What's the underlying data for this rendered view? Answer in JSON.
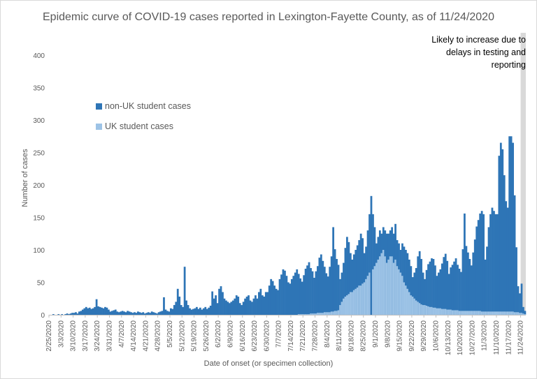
{
  "chart_data": {
    "type": "bar",
    "stacked": true,
    "title": "Epidemic curve of COVID-19 cases reported in Lexington-Fayette County, as of 11/24/2020",
    "xlabel": "Date of onset (or specimen collection)",
    "ylabel": "Number of cases",
    "ylim": [
      0,
      400
    ],
    "yticks": [
      0,
      50,
      100,
      150,
      200,
      250,
      300,
      350,
      400
    ],
    "xticks": [
      "2/25/2020",
      "3/3/2020",
      "3/10/2020",
      "3/17/2020",
      "3/24/2020",
      "3/31/2020",
      "4/7/2020",
      "4/14/2020",
      "4/21/2020",
      "4/28/2020",
      "5/5/2020",
      "5/12/2020",
      "5/19/2020",
      "5/26/2020",
      "6/2/2020",
      "6/9/2020",
      "6/16/2020",
      "6/23/2020",
      "6/30/2020",
      "7/7/2020",
      "7/14/2020",
      "7/21/2020",
      "7/28/2020",
      "8/4/2020",
      "8/11/2020",
      "8/18/2020",
      "8/25/2020",
      "9/1/2020",
      "9/8/2020",
      "9/15/2020",
      "9/22/2020",
      "9/29/2020",
      "10/6/2020",
      "10/13/2020",
      "10/20/2020",
      "10/27/2020",
      "11/3/2020",
      "11/10/2020",
      "11/17/2020",
      "11/24/2020"
    ],
    "start_date": "2/25/2020",
    "legend_position": "upper-left",
    "series": [
      {
        "name": "non-UK student cases",
        "color": "#2e75b6",
        "weekly_values": [
          [
            0,
            0,
            1,
            0,
            0,
            1,
            0
          ],
          [
            1,
            0,
            1,
            2,
            1,
            2,
            3
          ],
          [
            3,
            4,
            2,
            5,
            6,
            8,
            10
          ],
          [
            12,
            10,
            11,
            9,
            10,
            12,
            24
          ],
          [
            13,
            12,
            11,
            10,
            12,
            11,
            8
          ],
          [
            5,
            6,
            7,
            8,
            5,
            4,
            5
          ],
          [
            6,
            5,
            4,
            6,
            5,
            4,
            3
          ],
          [
            4,
            3,
            5,
            4,
            3,
            4,
            2
          ],
          [
            3,
            4,
            3,
            5,
            4,
            3,
            2
          ],
          [
            4,
            5,
            6,
            27,
            8,
            6,
            5
          ],
          [
            10,
            9,
            15,
            20,
            40,
            28,
            15
          ],
          [
            12,
            74,
            22,
            15,
            10,
            8,
            9
          ],
          [
            10,
            12,
            9,
            11,
            8,
            10,
            12
          ],
          [
            9,
            11,
            14,
            36,
            25,
            30,
            18
          ],
          [
            40,
            44,
            35,
            25,
            22,
            20,
            18
          ],
          [
            20,
            22,
            25,
            30,
            28,
            18,
            15
          ],
          [
            20,
            25,
            28,
            30,
            22,
            20,
            25
          ],
          [
            30,
            25,
            35,
            40,
            30,
            28,
            35
          ],
          [
            35,
            45,
            55,
            52,
            45,
            40,
            38
          ],
          [
            55,
            62,
            70,
            68,
            60,
            50,
            48
          ],
          [
            55,
            60,
            65,
            70,
            62,
            55,
            50
          ],
          [
            60,
            70,
            75,
            80,
            70,
            65,
            55
          ],
          [
            65,
            72,
            85,
            90,
            80,
            70,
            60
          ],
          [
            55,
            70,
            85,
            130,
            95,
            80,
            70
          ],
          [
            40,
            45,
            55,
            75,
            90,
            80,
            60
          ],
          [
            50,
            55,
            60,
            65,
            70,
            80,
            70
          ],
          [
            45,
            50,
            70,
            90,
            183,
            85,
            60
          ],
          [
            30,
            35,
            40,
            30,
            35,
            40,
            45
          ],
          [
            40,
            40,
            45,
            45,
            55,
            40,
            40
          ],
          [
            35,
            50,
            55,
            55,
            55,
            50,
            45
          ],
          [
            30,
            40,
            50,
            70,
            80,
            70,
            50
          ],
          [
            40,
            55,
            65,
            70,
            75,
            75,
            65
          ],
          [
            50,
            55,
            60,
            70,
            80,
            85,
            75
          ],
          [
            55,
            65,
            70,
            75,
            80,
            70,
            65
          ],
          [
            60,
            95,
            150,
            100,
            90,
            80,
            70
          ],
          [
            90,
            110,
            130,
            140,
            150,
            155,
            150
          ],
          [
            80,
            100,
            130,
            150,
            160,
            155,
            150
          ],
          [
            150,
            240,
            260,
            250,
            210,
            170,
            160
          ],
          [
            270,
            270,
            260,
            180,
            100,
            40,
            30
          ],
          [
            45,
            10,
            5
          ]
        ]
      },
      {
        "name": "UK student cases",
        "color": "#9dc3e6",
        "weekly_values": [
          [
            0,
            0,
            0,
            0,
            0,
            0,
            0
          ],
          [
            0,
            0,
            0,
            0,
            0,
            0,
            0
          ],
          [
            0,
            0,
            0,
            0,
            0,
            0,
            0
          ],
          [
            0,
            0,
            0,
            0,
            0,
            0,
            0
          ],
          [
            0,
            0,
            0,
            0,
            0,
            0,
            0
          ],
          [
            0,
            0,
            0,
            0,
            0,
            0,
            0
          ],
          [
            0,
            0,
            0,
            0,
            0,
            0,
            0
          ],
          [
            0,
            0,
            0,
            0,
            0,
            0,
            0
          ],
          [
            0,
            0,
            0,
            0,
            0,
            0,
            0
          ],
          [
            0,
            0,
            0,
            0,
            0,
            0,
            0
          ],
          [
            0,
            0,
            0,
            0,
            0,
            0,
            0
          ],
          [
            0,
            0,
            0,
            0,
            0,
            0,
            0
          ],
          [
            0,
            0,
            0,
            0,
            0,
            0,
            0
          ],
          [
            0,
            0,
            0,
            0,
            0,
            0,
            0
          ],
          [
            0,
            0,
            0,
            0,
            0,
            0,
            0
          ],
          [
            0,
            0,
            0,
            0,
            0,
            0,
            0
          ],
          [
            0,
            0,
            0,
            0,
            0,
            0,
            0
          ],
          [
            0,
            0,
            0,
            0,
            0,
            0,
            0
          ],
          [
            0,
            0,
            0,
            0,
            0,
            0,
            0
          ],
          [
            0,
            0,
            0,
            0,
            0,
            0,
            0
          ],
          [
            0,
            0,
            0,
            0,
            1,
            1,
            1
          ],
          [
            1,
            1,
            1,
            1,
            2,
            2,
            2
          ],
          [
            2,
            3,
            3,
            3,
            3,
            4,
            4
          ],
          [
            4,
            4,
            5,
            5,
            6,
            6,
            7
          ],
          [
            15,
            20,
            25,
            28,
            30,
            32,
            35
          ],
          [
            35,
            38,
            40,
            42,
            45,
            45,
            48
          ],
          [
            50,
            55,
            60,
            65,
            0,
            70,
            75
          ],
          [
            80,
            85,
            90,
            95,
            100,
            90,
            80
          ],
          [
            85,
            90,
            90,
            80,
            85,
            75,
            70
          ],
          [
            65,
            60,
            50,
            45,
            40,
            35,
            30
          ],
          [
            28,
            25,
            22,
            20,
            18,
            16,
            15
          ],
          [
            15,
            14,
            13,
            12,
            12,
            11,
            11
          ],
          [
            10,
            10,
            10,
            9,
            9,
            9,
            8
          ],
          [
            8,
            8,
            7,
            7,
            7,
            7,
            6
          ],
          [
            6,
            6,
            6,
            6,
            6,
            6,
            6
          ],
          [
            6,
            6,
            6,
            6,
            6,
            5,
            5
          ],
          [
            5,
            5,
            5,
            5,
            5,
            5,
            5
          ],
          [
            5,
            5,
            5,
            5,
            5,
            5,
            5
          ],
          [
            5,
            5,
            5,
            4,
            4,
            4,
            3
          ],
          [
            3,
            2,
            1
          ]
        ]
      }
    ],
    "annotations": [
      {
        "text_lines": [
          "Likely to increase due to",
          "delays in testing and",
          "reporting"
        ],
        "position": "top-right"
      }
    ],
    "shaded_recent_days": 3,
    "grid": false
  }
}
